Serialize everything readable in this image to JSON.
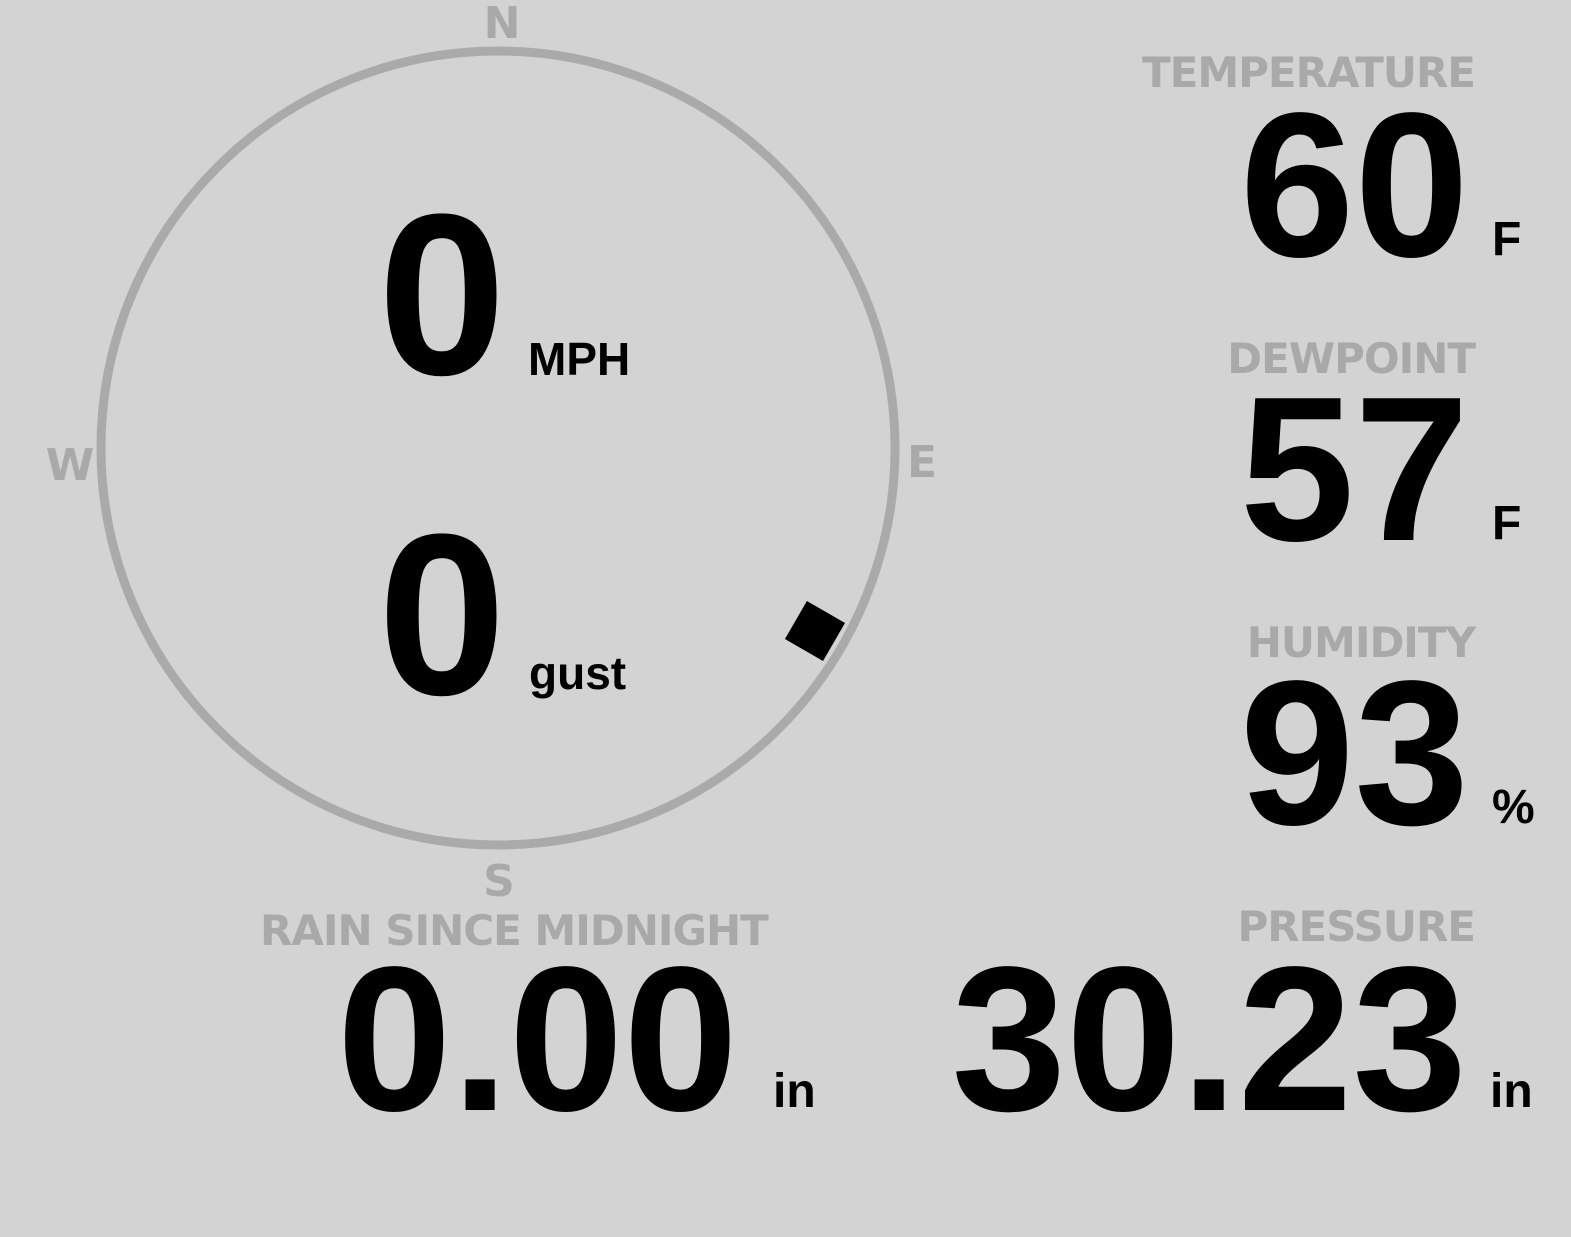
{
  "wind": {
    "speed": "0",
    "speed_unit": "MPH",
    "gust": "0",
    "gust_unit": "gust",
    "direction_degrees": 120,
    "compass": {
      "north": "N",
      "east": "E",
      "south": "S",
      "west": "W"
    },
    "ring_color": "#aaaaaa",
    "marker_color": "#000000"
  },
  "temperature": {
    "label": "TEMPERATURE",
    "value": "60",
    "unit": "F"
  },
  "dewpoint": {
    "label": "DEWPOINT",
    "value": "57",
    "unit": "F"
  },
  "humidity": {
    "label": "HUMIDITY",
    "value": "93",
    "unit": "%"
  },
  "pressure": {
    "label": "PRESSURE",
    "value": "30.23",
    "unit": "in"
  },
  "rain": {
    "label": "RAIN SINCE MIDNIGHT",
    "value": "0.00",
    "unit": "in"
  },
  "colors": {
    "background": "#d3d3d3",
    "label": "#a9a9a9",
    "value": "#000000"
  }
}
